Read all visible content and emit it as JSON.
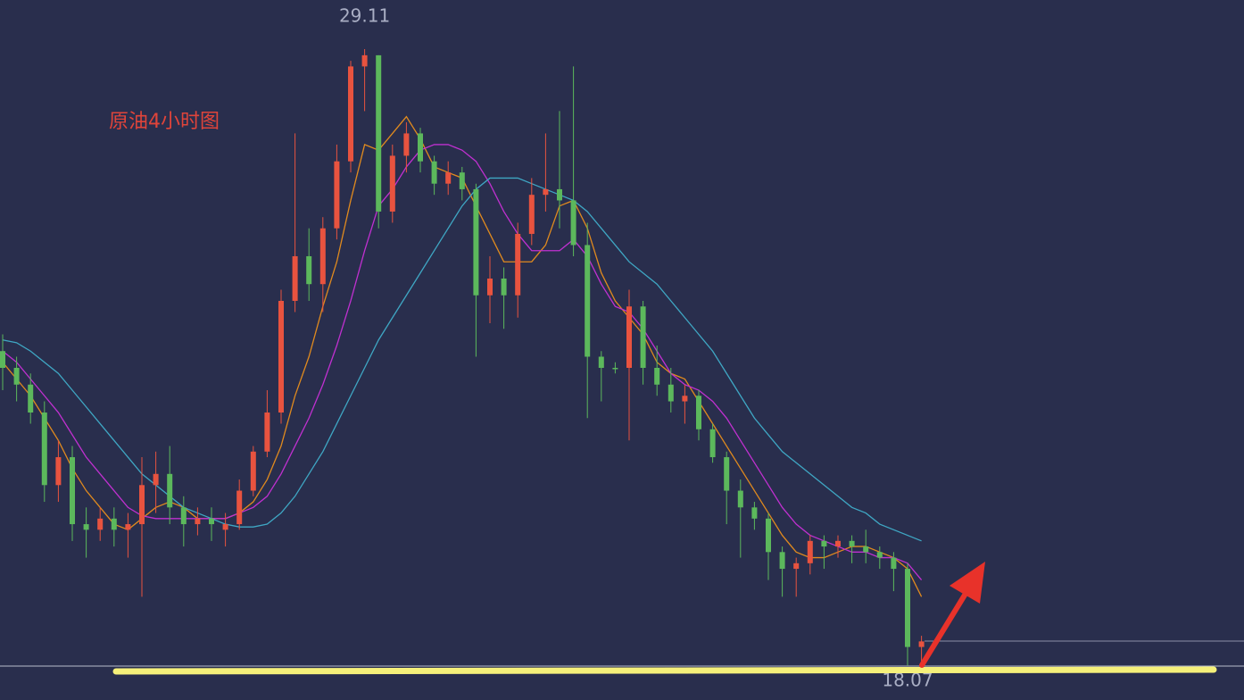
{
  "chart_data": {
    "type": "candlestick",
    "title": "原油4小时图",
    "ylim": [
      17.45,
      29.99
    ],
    "up_color": "#e8533f",
    "down_color": "#5cb85c",
    "ohlc": [
      [
        23.7,
        24.0,
        23.0,
        23.4
      ],
      [
        23.4,
        23.6,
        22.8,
        23.1
      ],
      [
        23.1,
        23.3,
        22.4,
        22.6
      ],
      [
        22.6,
        22.8,
        21.0,
        21.3
      ],
      [
        21.3,
        22.1,
        21.0,
        21.8
      ],
      [
        21.8,
        22.0,
        20.3,
        20.6
      ],
      [
        20.6,
        20.9,
        20.0,
        20.5
      ],
      [
        20.5,
        20.9,
        20.3,
        20.7
      ],
      [
        20.7,
        20.9,
        20.2,
        20.5
      ],
      [
        20.5,
        20.8,
        20.0,
        20.6
      ],
      [
        20.6,
        21.8,
        19.3,
        21.3
      ],
      [
        21.3,
        21.9,
        20.8,
        21.5
      ],
      [
        21.5,
        22.0,
        20.6,
        20.9
      ],
      [
        20.9,
        21.1,
        20.2,
        20.6
      ],
      [
        20.6,
        20.9,
        20.4,
        20.7
      ],
      [
        20.7,
        20.9,
        20.3,
        20.6
      ],
      [
        20.5,
        20.8,
        20.2,
        20.6
      ],
      [
        20.6,
        21.4,
        20.5,
        21.2
      ],
      [
        21.2,
        22.0,
        21.1,
        21.9
      ],
      [
        21.9,
        23.0,
        21.8,
        22.6
      ],
      [
        22.6,
        24.8,
        22.4,
        24.6
      ],
      [
        24.6,
        27.6,
        24.4,
        25.4
      ],
      [
        25.4,
        25.9,
        24.6,
        24.9
      ],
      [
        24.9,
        26.1,
        24.4,
        25.9
      ],
      [
        25.9,
        27.4,
        25.7,
        27.1
      ],
      [
        27.1,
        28.9,
        26.9,
        28.8
      ],
      [
        28.8,
        29.11,
        28.0,
        29.0
      ],
      [
        29.0,
        29.0,
        25.9,
        26.2
      ],
      [
        26.2,
        27.4,
        26.0,
        27.2
      ],
      [
        27.2,
        27.8,
        26.9,
        27.6
      ],
      [
        27.6,
        27.7,
        26.9,
        27.1
      ],
      [
        27.1,
        27.2,
        26.5,
        26.7
      ],
      [
        26.7,
        27.1,
        26.5,
        26.9
      ],
      [
        26.9,
        27.0,
        26.4,
        26.6
      ],
      [
        26.6,
        26.7,
        23.6,
        24.7
      ],
      [
        24.7,
        25.4,
        24.2,
        25.0
      ],
      [
        25.0,
        25.2,
        24.1,
        24.7
      ],
      [
        24.7,
        26.0,
        24.3,
        25.8
      ],
      [
        25.8,
        26.8,
        25.6,
        26.5
      ],
      [
        26.5,
        27.6,
        26.2,
        26.6
      ],
      [
        26.6,
        28.0,
        25.9,
        26.4
      ],
      [
        26.4,
        28.8,
        25.4,
        25.6
      ],
      [
        25.6,
        26.0,
        22.5,
        23.6
      ],
      [
        23.6,
        23.7,
        22.8,
        23.4
      ],
      [
        23.4,
        23.5,
        23.3,
        23.4
      ],
      [
        23.4,
        24.8,
        22.1,
        24.5
      ],
      [
        24.5,
        24.6,
        23.1,
        23.4
      ],
      [
        23.4,
        23.8,
        22.9,
        23.1
      ],
      [
        23.1,
        23.4,
        22.6,
        22.8
      ],
      [
        22.8,
        23.1,
        22.4,
        22.9
      ],
      [
        22.9,
        23.0,
        22.1,
        22.3
      ],
      [
        22.3,
        22.4,
        21.7,
        21.8
      ],
      [
        21.8,
        21.9,
        20.6,
        21.2
      ],
      [
        21.2,
        21.4,
        20.0,
        20.9
      ],
      [
        20.9,
        21.0,
        20.5,
        20.7
      ],
      [
        20.7,
        20.8,
        19.6,
        20.1
      ],
      [
        20.1,
        20.2,
        19.3,
        19.8
      ],
      [
        19.8,
        20.0,
        19.3,
        19.9
      ],
      [
        19.9,
        20.4,
        19.7,
        20.3
      ],
      [
        20.3,
        20.4,
        19.8,
        20.2
      ],
      [
        20.2,
        20.4,
        20.0,
        20.3
      ],
      [
        20.3,
        20.4,
        19.9,
        20.2
      ],
      [
        20.2,
        20.5,
        19.9,
        20.1
      ],
      [
        20.1,
        20.2,
        19.8,
        20.0
      ],
      [
        20.0,
        20.1,
        19.4,
        19.8
      ],
      [
        19.8,
        19.9,
        18.07,
        18.4
      ],
      [
        18.4,
        18.6,
        18.1,
        18.5
      ]
    ],
    "lines": [
      {
        "color": "#e08a1e",
        "values": [
          23.5,
          23.2,
          22.9,
          22.5,
          22.1,
          21.6,
          21.2,
          20.9,
          20.6,
          20.5,
          20.7,
          20.9,
          21.0,
          20.9,
          20.7,
          20.7,
          20.7,
          20.8,
          21.0,
          21.4,
          22.0,
          22.9,
          23.6,
          24.5,
          25.3,
          26.4,
          27.4,
          27.3,
          27.6,
          27.9,
          27.5,
          27.0,
          26.9,
          26.8,
          26.3,
          25.8,
          25.3,
          25.3,
          25.3,
          25.6,
          26.3,
          26.4,
          25.9,
          25.1,
          24.6,
          24.3,
          24.0,
          23.5,
          23.3,
          23.2,
          22.8,
          22.4,
          22.0,
          21.6,
          21.2,
          20.8,
          20.4,
          20.1,
          20.0,
          20.0,
          20.1,
          20.2,
          20.2,
          20.1,
          20.0,
          19.8,
          19.3
        ]
      },
      {
        "color": "#c030d0",
        "values": [
          23.7,
          23.5,
          23.2,
          22.9,
          22.6,
          22.2,
          21.8,
          21.5,
          21.2,
          20.9,
          20.75,
          20.7,
          20.7,
          20.7,
          20.7,
          20.7,
          20.7,
          20.8,
          20.9,
          21.1,
          21.5,
          22.0,
          22.5,
          23.1,
          23.8,
          24.6,
          25.5,
          26.3,
          26.6,
          27.0,
          27.3,
          27.4,
          27.4,
          27.3,
          27.1,
          26.7,
          26.2,
          25.8,
          25.5,
          25.5,
          25.5,
          25.7,
          25.4,
          24.9,
          24.5,
          24.4,
          24.1,
          23.7,
          23.3,
          23.1,
          23.0,
          22.8,
          22.5,
          22.1,
          21.7,
          21.3,
          20.9,
          20.6,
          20.4,
          20.3,
          20.2,
          20.1,
          20.1,
          20.0,
          20.0,
          19.9,
          19.6
        ]
      },
      {
        "color": "#3fa7c4",
        "values": [
          23.9,
          23.85,
          23.7,
          23.5,
          23.3,
          23.0,
          22.7,
          22.4,
          22.1,
          21.8,
          21.5,
          21.3,
          21.1,
          20.9,
          20.8,
          20.7,
          20.6,
          20.55,
          20.55,
          20.6,
          20.8,
          21.1,
          21.5,
          21.9,
          22.4,
          22.9,
          23.4,
          23.9,
          24.3,
          24.7,
          25.1,
          25.5,
          25.9,
          26.3,
          26.6,
          26.8,
          26.8,
          26.8,
          26.7,
          26.6,
          26.5,
          26.4,
          26.2,
          25.9,
          25.6,
          25.3,
          25.1,
          24.9,
          24.6,
          24.3,
          24.0,
          23.7,
          23.3,
          22.9,
          22.5,
          22.2,
          21.9,
          21.7,
          21.5,
          21.3,
          21.1,
          20.9,
          20.8,
          20.6,
          20.5,
          20.4,
          20.3
        ]
      }
    ]
  }
}
